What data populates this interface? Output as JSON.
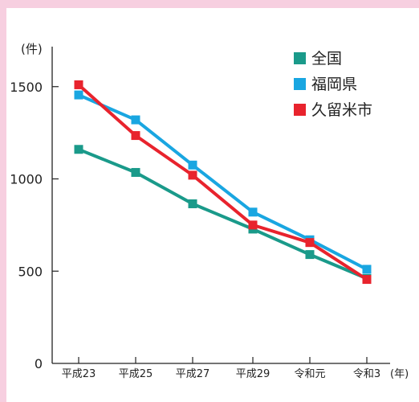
{
  "chart_data": {
    "type": "line",
    "x": [
      "平成23",
      "平成25",
      "平成27",
      "平成29",
      "令和元",
      "令和3"
    ],
    "ylim": [
      0,
      1900
    ],
    "yticks": [
      0,
      500,
      1000,
      1500
    ],
    "ylabel": "(件)",
    "xlabel": "(年)",
    "grid": false,
    "legend": "top-right",
    "series": [
      {
        "name": "全国",
        "color": "#1a9a8a",
        "values": [
          1160,
          1035,
          865,
          728,
          590,
          460
        ]
      },
      {
        "name": "福岡県",
        "color": "#19a6e1",
        "values": [
          1455,
          1320,
          1075,
          820,
          670,
          510
        ]
      },
      {
        "name": "久留米市",
        "color": "#e8232d",
        "values": [
          1510,
          1235,
          1020,
          750,
          655,
          455
        ]
      }
    ]
  }
}
